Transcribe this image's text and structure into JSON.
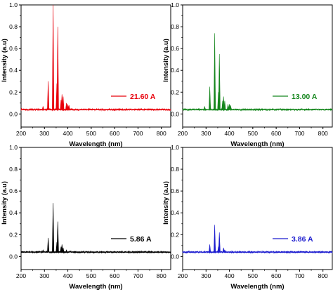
{
  "chart_data": [
    {
      "type": "line",
      "xlabel": "Wavelength (nm)",
      "ylabel": "Intensity (a.u)",
      "xlim": [
        200,
        840
      ],
      "ylim": [
        -0.12,
        1.0
      ],
      "xticks": [
        200,
        300,
        400,
        500,
        600,
        700,
        800
      ],
      "xtick_labels": [
        "200",
        "300",
        "400",
        "500",
        "600",
        "700",
        "800"
      ],
      "yticks": [
        0.0,
        0.2,
        0.4,
        0.6,
        0.8,
        1.0
      ],
      "ytick_labels": [
        "0.0",
        "0.2",
        "0.4",
        "0.6",
        "0.8",
        "1.0"
      ],
      "baseline": 0.04,
      "legend_position": "right",
      "series": [
        {
          "name": "21.60 A",
          "color": "#e8000b",
          "peaks": [
            {
              "x": 294,
              "y": 0.07
            },
            {
              "x": 316,
              "y": 0.3
            },
            {
              "x": 337,
              "y": 1.0
            },
            {
              "x": 353,
              "y": 0.28
            },
            {
              "x": 357,
              "y": 0.8
            },
            {
              "x": 371,
              "y": 0.13
            },
            {
              "x": 375,
              "y": 0.18
            },
            {
              "x": 380,
              "y": 0.16
            },
            {
              "x": 394,
              "y": 0.1
            },
            {
              "x": 400,
              "y": 0.09
            },
            {
              "x": 405,
              "y": 0.08
            }
          ]
        },
        {
          "name": "13.00 A",
          "color": "#15861d",
          "peaks": [
            {
              "x": 294,
              "y": 0.07
            },
            {
              "x": 316,
              "y": 0.25
            },
            {
              "x": 337,
              "y": 0.74
            },
            {
              "x": 353,
              "y": 0.2
            },
            {
              "x": 357,
              "y": 0.55
            },
            {
              "x": 371,
              "y": 0.12
            },
            {
              "x": 375,
              "y": 0.16
            },
            {
              "x": 380,
              "y": 0.12
            },
            {
              "x": 394,
              "y": 0.09
            },
            {
              "x": 400,
              "y": 0.09
            },
            {
              "x": 405,
              "y": 0.08
            }
          ]
        },
        {
          "name": "5.86 A",
          "color": "#000000",
          "peaks": [
            {
              "x": 294,
              "y": 0.06
            },
            {
              "x": 316,
              "y": 0.17
            },
            {
              "x": 337,
              "y": 0.49
            },
            {
              "x": 353,
              "y": 0.13
            },
            {
              "x": 357,
              "y": 0.32
            },
            {
              "x": 371,
              "y": 0.09
            },
            {
              "x": 375,
              "y": 0.11
            },
            {
              "x": 380,
              "y": 0.08
            },
            {
              "x": 394,
              "y": 0.06
            }
          ]
        },
        {
          "name": "3.86 A",
          "color": "#1c1ccf",
          "peaks": [
            {
              "x": 294,
              "y": 0.05
            },
            {
              "x": 316,
              "y": 0.11
            },
            {
              "x": 337,
              "y": 0.29
            },
            {
              "x": 353,
              "y": 0.09
            },
            {
              "x": 357,
              "y": 0.22
            },
            {
              "x": 375,
              "y": 0.08
            },
            {
              "x": 380,
              "y": 0.06
            }
          ]
        }
      ]
    }
  ]
}
